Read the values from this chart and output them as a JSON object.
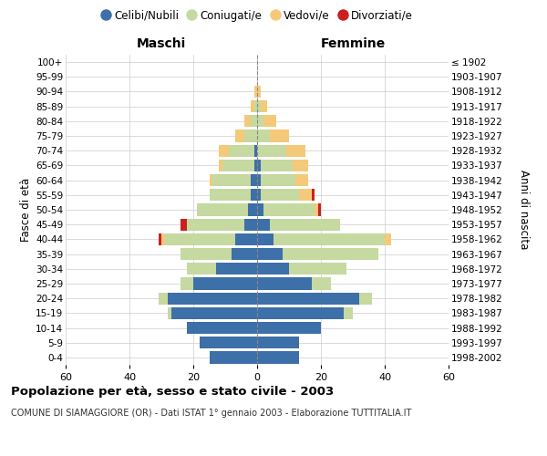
{
  "age_groups": [
    "0-4",
    "5-9",
    "10-14",
    "15-19",
    "20-24",
    "25-29",
    "30-34",
    "35-39",
    "40-44",
    "45-49",
    "50-54",
    "55-59",
    "60-64",
    "65-69",
    "70-74",
    "75-79",
    "80-84",
    "85-89",
    "90-94",
    "95-99",
    "100+"
  ],
  "birth_years": [
    "1998-2002",
    "1993-1997",
    "1988-1992",
    "1983-1987",
    "1978-1982",
    "1973-1977",
    "1968-1972",
    "1963-1967",
    "1958-1962",
    "1953-1957",
    "1948-1952",
    "1943-1947",
    "1938-1942",
    "1933-1937",
    "1928-1932",
    "1923-1927",
    "1918-1922",
    "1913-1917",
    "1908-1912",
    "1903-1907",
    "≤ 1902"
  ],
  "males": {
    "celibi": [
      15,
      18,
      22,
      27,
      28,
      20,
      13,
      8,
      7,
      4,
      3,
      2,
      2,
      1,
      1,
      0,
      0,
      0,
      0,
      0,
      0
    ],
    "coniugati": [
      0,
      0,
      0,
      1,
      3,
      4,
      9,
      16,
      22,
      18,
      16,
      13,
      12,
      10,
      8,
      4,
      2,
      1,
      0,
      0,
      0
    ],
    "vedovi": [
      0,
      0,
      0,
      0,
      0,
      0,
      0,
      0,
      1,
      0,
      0,
      0,
      1,
      1,
      3,
      3,
      2,
      1,
      1,
      0,
      0
    ],
    "divorziati": [
      0,
      0,
      0,
      0,
      0,
      0,
      0,
      0,
      1,
      2,
      0,
      0,
      0,
      0,
      0,
      0,
      0,
      0,
      0,
      0,
      0
    ]
  },
  "females": {
    "nubili": [
      13,
      13,
      20,
      27,
      32,
      17,
      10,
      8,
      5,
      4,
      2,
      1,
      1,
      1,
      0,
      0,
      0,
      0,
      0,
      0,
      0
    ],
    "coniugate": [
      0,
      0,
      0,
      3,
      4,
      6,
      18,
      30,
      35,
      22,
      16,
      12,
      11,
      10,
      9,
      4,
      2,
      1,
      0,
      0,
      0
    ],
    "vedove": [
      0,
      0,
      0,
      0,
      0,
      0,
      0,
      0,
      2,
      0,
      1,
      4,
      4,
      5,
      6,
      6,
      4,
      2,
      1,
      0,
      0
    ],
    "divorziate": [
      0,
      0,
      0,
      0,
      0,
      0,
      0,
      0,
      0,
      0,
      1,
      1,
      0,
      0,
      0,
      0,
      0,
      0,
      0,
      0,
      0
    ]
  },
  "colors": {
    "celibi_nubili": "#3d6fa8",
    "coniugati": "#c5d9a0",
    "vedovi": "#f5c97a",
    "divorziati": "#cc2020"
  },
  "xlim": 60,
  "title": "Popolazione per età, sesso e stato civile - 2003",
  "subtitle": "COMUNE DI SIAMAGGIORE (OR) - Dati ISTAT 1° gennaio 2003 - Elaborazione TUTTITALIA.IT",
  "xlabel_left": "Maschi",
  "xlabel_right": "Femmine",
  "ylabel_left": "Fasce di età",
  "ylabel_right": "Anni di nascita",
  "legend_labels": [
    "Celibi/Nubili",
    "Coniugati/e",
    "Vedovi/e",
    "Divorziati/e"
  ],
  "background_color": "#ffffff",
  "grid_color": "#cccccc"
}
